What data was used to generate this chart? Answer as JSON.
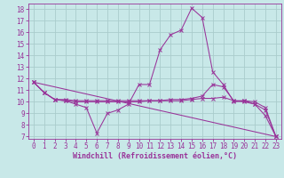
{
  "title": "",
  "xlabel": "Windchill (Refroidissement éolien,°C)",
  "background_color": "#c8e8e8",
  "grid_color": "#aacccc",
  "line_color": "#993399",
  "marker": "x",
  "xlim": [
    -0.5,
    23.5
  ],
  "ylim": [
    6.8,
    18.5
  ],
  "yticks": [
    7,
    8,
    9,
    10,
    11,
    12,
    13,
    14,
    15,
    16,
    17,
    18
  ],
  "xticks": [
    0,
    1,
    2,
    3,
    4,
    5,
    6,
    7,
    8,
    9,
    10,
    11,
    12,
    13,
    14,
    15,
    16,
    17,
    18,
    19,
    20,
    21,
    22,
    23
  ],
  "series1": [
    11.7,
    10.8,
    10.2,
    10.1,
    9.8,
    9.5,
    7.3,
    9.0,
    9.3,
    9.8,
    11.5,
    11.5,
    14.5,
    15.8,
    16.2,
    18.1,
    17.3,
    12.6,
    11.5,
    10.0,
    10.1,
    9.8,
    8.8,
    7.0
  ],
  "series2": [
    11.7,
    10.8,
    10.2,
    10.1,
    10.0,
    10.0,
    10.0,
    10.0,
    10.0,
    10.0,
    10.0,
    10.1,
    10.1,
    10.1,
    10.1,
    10.2,
    10.3,
    10.3,
    10.4,
    10.1,
    10.1,
    10.0,
    9.5,
    7.0
  ],
  "series3": [
    11.7,
    10.8,
    10.2,
    10.2,
    10.1,
    10.1,
    10.1,
    10.1,
    10.1,
    10.1,
    10.1,
    10.1,
    10.1,
    10.2,
    10.2,
    10.3,
    10.5,
    11.5,
    11.3,
    10.1,
    10.0,
    9.8,
    9.3,
    7.0
  ],
  "series4_x": [
    0,
    23
  ],
  "series4_y": [
    11.7,
    7.0
  ],
  "tick_fontsize": 5.5,
  "xlabel_fontsize": 6.0
}
